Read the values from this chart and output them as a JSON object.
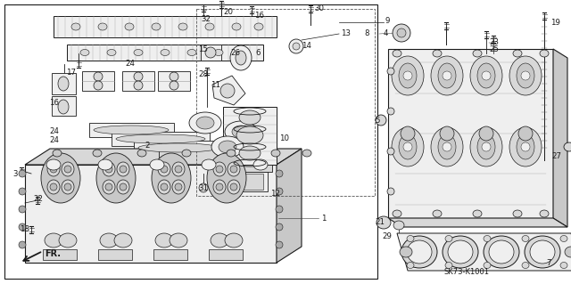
{
  "bg_color": "#ffffff",
  "fig_width": 6.4,
  "fig_height": 3.19,
  "dpi": 100,
  "diagram_ref_code": "SK73-K1001",
  "fr_label": "FR.",
  "line_color": "#1a1a1a",
  "gray_fill": "#d8d8d8",
  "light_fill": "#efefef",
  "mid_fill": "#c8c8c8",
  "border_lw": 0.7,
  "label_fontsize": 6.2,
  "ref_fontsize": 6.0,
  "fr_fontsize": 7.0
}
